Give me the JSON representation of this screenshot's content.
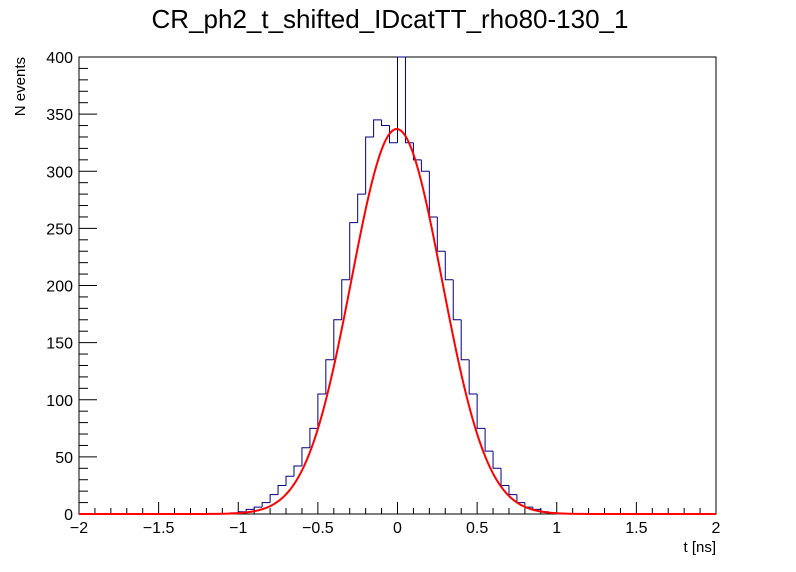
{
  "chart_data": {
    "type": "histogram",
    "title": "CR_ph2_t_shifted_IDcatTT_rho80-130_1",
    "xlabel": "t [ns]",
    "ylabel": "N events",
    "xlim": [
      -2,
      2
    ],
    "ylim": [
      0,
      400
    ],
    "x_ticks": [
      "-2",
      "-1.5",
      "-1",
      "-0.5",
      "0",
      "0.5",
      "1",
      "1.5",
      "2"
    ],
    "y_ticks": [
      "0",
      "50",
      "100",
      "150",
      "200",
      "250",
      "300",
      "350",
      "400"
    ],
    "grid": false,
    "series": [
      {
        "name": "histogram",
        "style": "step",
        "color": "#000080",
        "bin_centers": [
          -1.175,
          -1.125,
          -1.075,
          -1.025,
          -0.975,
          -0.925,
          -0.875,
          -0.825,
          -0.775,
          -0.725,
          -0.675,
          -0.625,
          -0.575,
          -0.525,
          -0.475,
          -0.425,
          -0.375,
          -0.325,
          -0.275,
          -0.225,
          -0.175,
          -0.125,
          -0.075,
          -0.025,
          0.025,
          0.075,
          0.125,
          0.175,
          0.225,
          0.275,
          0.325,
          0.375,
          0.425,
          0.475,
          0.525,
          0.575,
          0.625,
          0.675,
          0.725,
          0.775,
          0.825,
          0.875,
          0.925,
          0.975,
          1.025,
          1.075,
          1.125,
          1.175
        ],
        "values": [
          0,
          0,
          0,
          1,
          2,
          4,
          6,
          10,
          17,
          25,
          33,
          42,
          58,
          75,
          105,
          135,
          170,
          205,
          255,
          280,
          330,
          345,
          340,
          325,
          400,
          325,
          310,
          300,
          260,
          230,
          205,
          170,
          135,
          105,
          75,
          55,
          40,
          25,
          17,
          10,
          6,
          4,
          2,
          1,
          0,
          0,
          0,
          0
        ]
      },
      {
        "name": "gaussian fit",
        "style": "line",
        "color": "#ff0000",
        "function": "gaussian",
        "amplitude": 337,
        "mean": -0.005,
        "sigma": 0.285
      }
    ]
  }
}
